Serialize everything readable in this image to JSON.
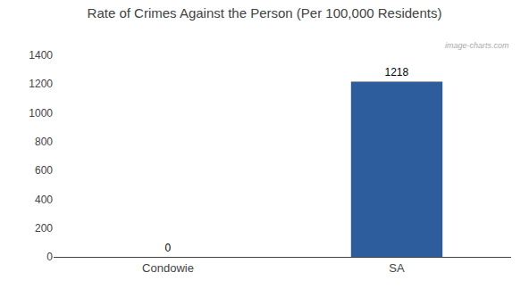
{
  "chart_data": {
    "type": "bar",
    "title": "Rate of Crimes Against the Person (Per 100,000 Residents)",
    "categories": [
      "Condowie",
      "SA"
    ],
    "values": [
      0,
      1218
    ],
    "color": "#2e5d9e",
    "ylim": [
      0,
      1400
    ],
    "yticks": [
      0,
      200,
      400,
      600,
      800,
      1000,
      1200,
      1400
    ],
    "data_labels": true,
    "grid": false,
    "annotations": [
      "image-charts.com"
    ]
  }
}
